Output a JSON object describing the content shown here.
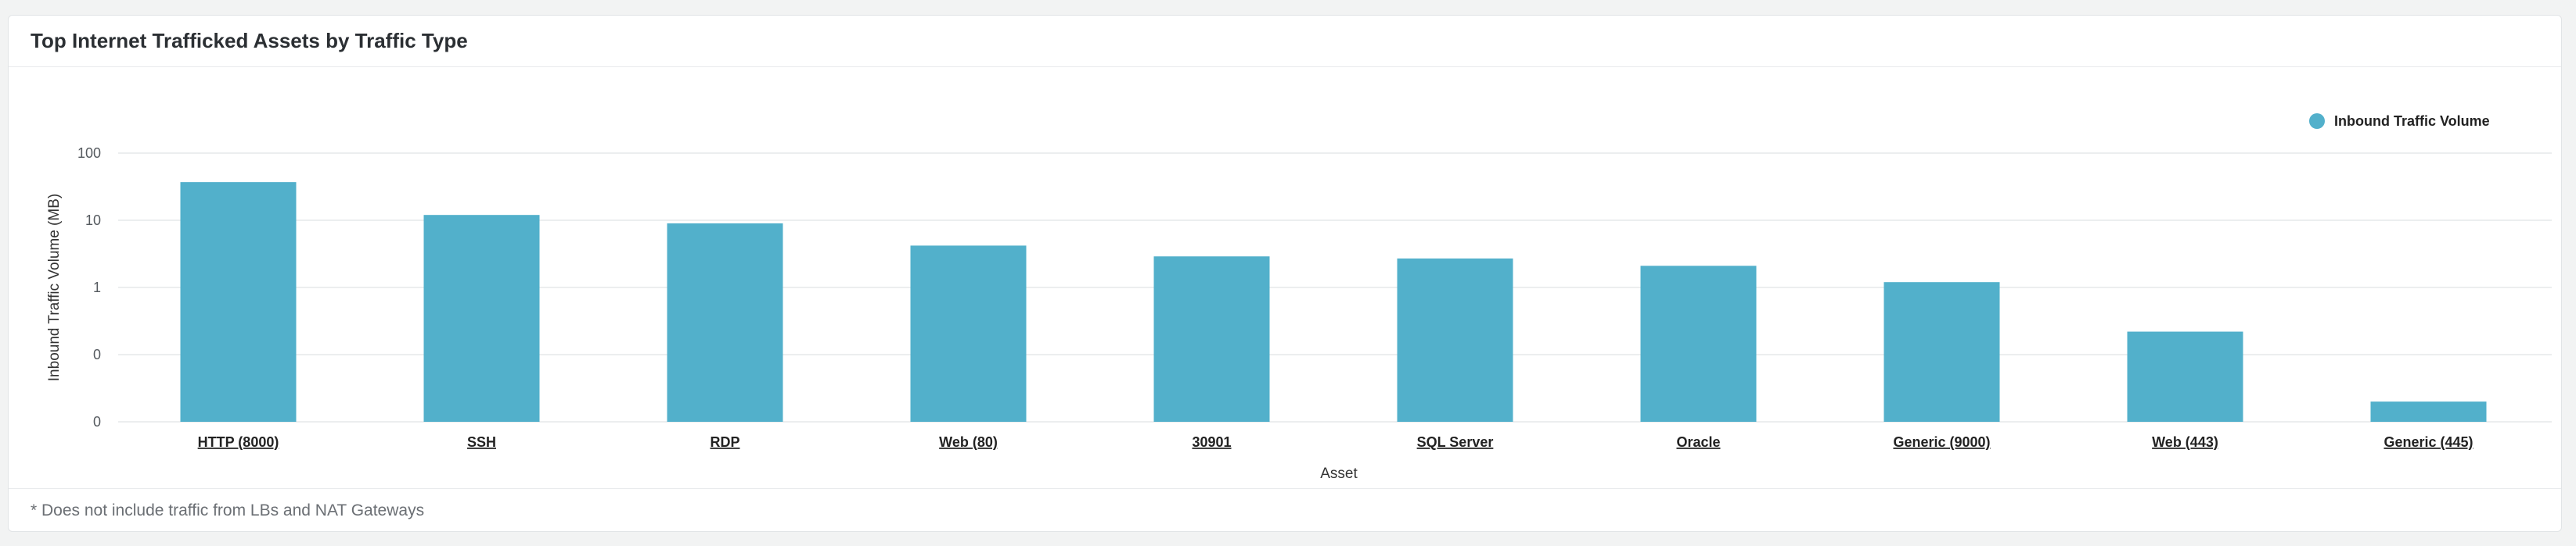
{
  "panel": {
    "title": "Top Internet Trafficked Assets by Traffic Type",
    "footnote": "* Does not include traffic from LBs and NAT Gateways"
  },
  "colors": {
    "bar": "#52b0cb",
    "grid": "#e6e8ea"
  },
  "chart_data": {
    "type": "bar",
    "title": "Top Internet Trafficked Assets by Traffic Type",
    "xlabel": "Asset",
    "ylabel": "Inbound Traffic Volume (MB)",
    "y_scale": "log",
    "ylim": [
      0.01,
      100
    ],
    "y_ticks": [
      {
        "value": 100,
        "label": "100"
      },
      {
        "value": 10,
        "label": "10"
      },
      {
        "value": 1,
        "label": "1"
      },
      {
        "value": 0.1,
        "label": "0"
      },
      {
        "value": 0.01,
        "label": "0"
      }
    ],
    "grid": true,
    "legend": {
      "position": "top-right"
    },
    "categories": [
      "HTTP (8000)",
      "SSH",
      "RDP",
      "Web (80)",
      "30901",
      "SQL Server",
      "Oracle",
      "Generic (9000)",
      "Web (443)",
      "Generic (445)"
    ],
    "series": [
      {
        "name": "Inbound Traffic Volume",
        "values": [
          37,
          12,
          9,
          4.2,
          2.9,
          2.7,
          2.1,
          1.2,
          0.22,
          0.02
        ]
      }
    ]
  }
}
